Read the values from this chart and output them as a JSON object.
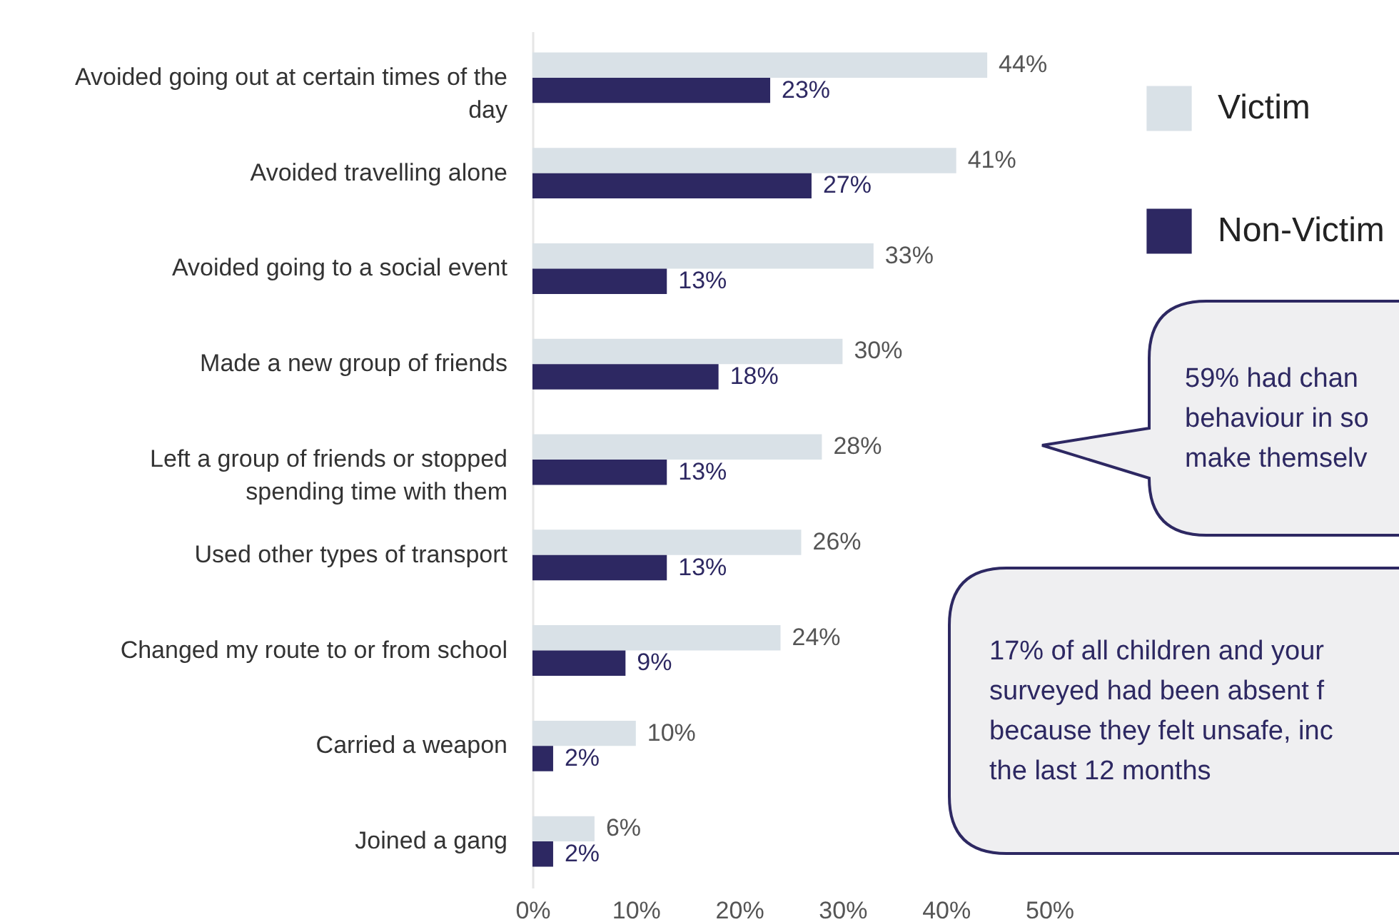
{
  "chart_data": {
    "type": "bar",
    "orientation": "horizontal",
    "legend": "right",
    "categories": [
      "Avoided going out at certain times of the day",
      "Avoided travelling alone",
      "Avoided going to a social event",
      "Made a new group of friends",
      "Left a group of friends or stopped spending time with them",
      "Used other types of transport",
      "Changed my route to or from school",
      "Carried a weapon",
      "Joined a gang"
    ],
    "series": [
      {
        "name": "Victim",
        "color": "#d9e1e7",
        "values": [
          44,
          41,
          33,
          30,
          28,
          26,
          24,
          10,
          6
        ],
        "value_labels": [
          "44%",
          "41%",
          "33%",
          "30%",
          "28%",
          "26%",
          "24%",
          "10%",
          "6%"
        ]
      },
      {
        "name": "Non-Victim",
        "color": "#2d2862",
        "values": [
          23,
          27,
          13,
          18,
          13,
          13,
          9,
          2,
          2
        ],
        "value_labels": [
          "23%",
          "27%",
          "13%",
          "18%",
          "13%",
          "13%",
          "9%",
          "2%",
          "2%"
        ]
      }
    ],
    "xlim": [
      0,
      50
    ],
    "xticks": [
      {
        "value": 0,
        "label": "0%"
      },
      {
        "value": 10,
        "label": "10%"
      },
      {
        "value": 20,
        "label": "20%"
      },
      {
        "value": 30,
        "label": "30%"
      },
      {
        "value": 40,
        "label": "40%"
      },
      {
        "value": 50,
        "label": "50%"
      }
    ],
    "annotations": [
      "59% had chan\nbehaviour in so\nmake themselv",
      "17% of all children and your\nsurveyed had been absent f\nbecause they felt unsafe, inc\nthe last 12 months"
    ]
  }
}
